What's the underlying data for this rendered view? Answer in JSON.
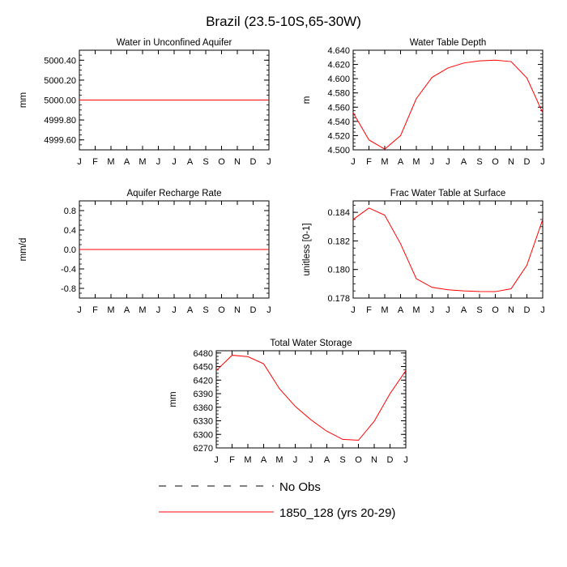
{
  "figure_title": "Brazil (23.5-10S,65-30W)",
  "months": [
    "J",
    "F",
    "M",
    "A",
    "M",
    "J",
    "J",
    "A",
    "S",
    "O",
    "N",
    "D",
    "J"
  ],
  "colors": {
    "model": "#ff0000",
    "obs": "#000000",
    "axis": "#000000"
  },
  "legend": {
    "items": [
      {
        "label": "No Obs",
        "style": "dashed",
        "color": "#000000"
      },
      {
        "label": "1850_128 (yrs 20-29)",
        "style": "solid",
        "color": "#ff0000"
      }
    ]
  },
  "chart_data": [
    {
      "type": "line",
      "title": "Water in Unconfined Aquifer",
      "ylabel": "mm",
      "ylim": [
        4999.5,
        5000.5
      ],
      "yticks": [
        4999.6,
        4999.8,
        5000.0,
        5000.2,
        5000.4
      ],
      "ytick_labels": [
        "4999.60",
        "4999.80",
        "5000.00",
        "5000.20",
        "5000.40"
      ],
      "series": [
        {
          "name": "1850_128 (yrs 20-29)",
          "values": [
            5000,
            5000,
            5000,
            5000,
            5000,
            5000,
            5000,
            5000,
            5000,
            5000,
            5000,
            5000,
            5000
          ]
        }
      ]
    },
    {
      "type": "line",
      "title": "Water Table Depth",
      "ylabel": "m",
      "ylim": [
        4.5,
        4.64
      ],
      "yticks": [
        4.5,
        4.52,
        4.54,
        4.56,
        4.58,
        4.6,
        4.62,
        4.64
      ],
      "ytick_labels": [
        "4.500",
        "4.520",
        "4.540",
        "4.560",
        "4.580",
        "4.600",
        "4.620",
        "4.640"
      ],
      "series": [
        {
          "name": "1850_128 (yrs 20-29)",
          "values": [
            4.552,
            4.514,
            4.501,
            4.52,
            4.572,
            4.602,
            4.615,
            4.622,
            4.625,
            4.626,
            4.624,
            4.601,
            4.552
          ]
        }
      ]
    },
    {
      "type": "line",
      "title": "Aquifer Recharge Rate",
      "ylabel": "mm/d",
      "ylim": [
        -1.0,
        1.0
      ],
      "yticks": [
        -0.8,
        -0.4,
        0.0,
        0.4,
        0.8
      ],
      "ytick_labels": [
        "-0.8",
        "-0.4",
        "0.0",
        "0.4",
        "0.8"
      ],
      "series": [
        {
          "name": "1850_128 (yrs 20-29)",
          "values": [
            0,
            0,
            0,
            0,
            0,
            0,
            0,
            0,
            0,
            0,
            0,
            0,
            0
          ]
        }
      ]
    },
    {
      "type": "line",
      "title": "Frac Water Table at Surface",
      "ylabel": "unitless [0-1]",
      "ylim": [
        0.178,
        0.1848
      ],
      "yticks": [
        0.178,
        0.18,
        0.182,
        0.184
      ],
      "ytick_labels": [
        "0.178",
        "0.180",
        "0.182",
        "0.184"
      ],
      "series": [
        {
          "name": "1850_128 (yrs 20-29)",
          "values": [
            0.1835,
            0.1843,
            0.1838,
            0.1818,
            0.17935,
            0.17875,
            0.17858,
            0.1785,
            0.17846,
            0.17845,
            0.17865,
            0.1803,
            0.1835
          ]
        }
      ]
    },
    {
      "type": "line",
      "title": "Total Water Storage",
      "ylabel": "mm",
      "ylim": [
        6270,
        6485
      ],
      "yticks": [
        6270,
        6300,
        6330,
        6360,
        6390,
        6420,
        6450,
        6480
      ],
      "ytick_labels": [
        "6270",
        "6300",
        "6330",
        "6360",
        "6390",
        "6420",
        "6450",
        "6480"
      ],
      "series": [
        {
          "name": "1850_128 (yrs 20-29)",
          "values": [
            6441,
            6475,
            6472,
            6456,
            6401,
            6362,
            6332,
            6307,
            6289,
            6287,
            6329,
            6390,
            6441
          ]
        }
      ]
    }
  ]
}
